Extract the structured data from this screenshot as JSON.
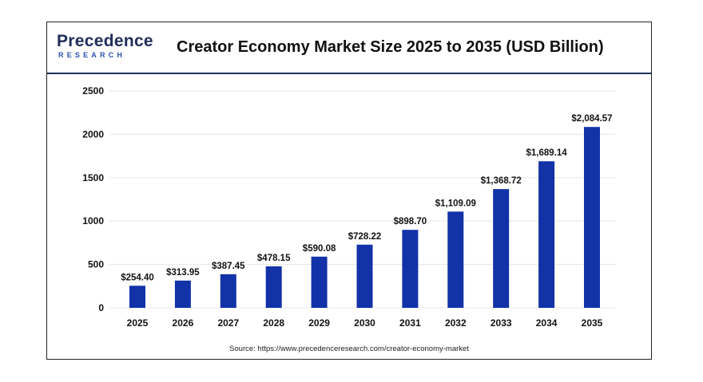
{
  "brand": {
    "name": "Precedence",
    "sub": "RESEARCH"
  },
  "source": "Source: https://www.precedenceresearch.com/creator-economy-market",
  "colors": {
    "bar": "#1232a8",
    "header_line": "#1f2d5a",
    "grid": "#e6e6e6"
  },
  "chart_data": {
    "type": "bar",
    "title": "Creator Economy Market Size 2025 to 2035 (USD Billion)",
    "xlabel": "",
    "ylabel": "",
    "ylim": [
      0,
      2500
    ],
    "yticks": [
      0,
      500,
      1000,
      1500,
      2000,
      2500
    ],
    "grid": true,
    "categories": [
      "2025",
      "2026",
      "2027",
      "2028",
      "2029",
      "2030",
      "2031",
      "2032",
      "2033",
      "2034",
      "2035"
    ],
    "values": [
      254.4,
      313.95,
      387.45,
      478.15,
      590.08,
      728.22,
      898.7,
      1109.09,
      1368.72,
      1689.14,
      2084.57
    ],
    "data_labels": [
      "$254.40",
      "$313.95",
      "$387.45",
      "$478.15",
      "$590.08",
      "$728.22",
      "$898.70",
      "$1,109.09",
      "$1,368.72",
      "$1,689.14",
      "$2,084.57"
    ]
  }
}
